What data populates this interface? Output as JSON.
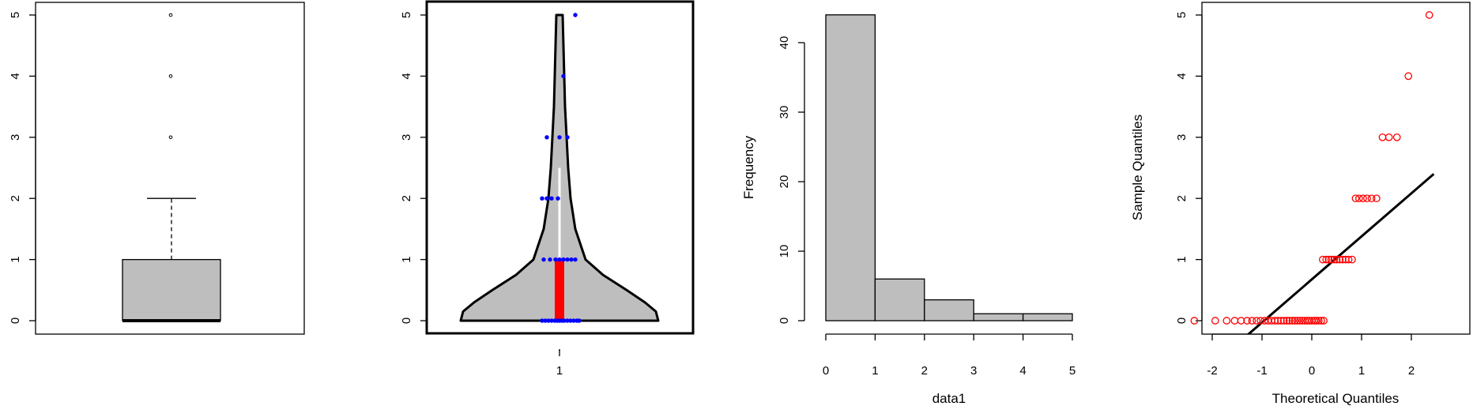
{
  "chart_data": [
    {
      "type": "box",
      "y_ticks": [
        "0",
        "1",
        "2",
        "3",
        "4",
        "5"
      ],
      "ylim": [
        0,
        5
      ],
      "stats": {
        "min": 0,
        "q1": 0,
        "median": 0,
        "q3": 1,
        "whisker_high": 2
      },
      "outliers": [
        3,
        4,
        5
      ],
      "fill": "#bebebe"
    },
    {
      "type": "violin",
      "x_ticks": [
        "1"
      ],
      "y_ticks": [
        "0",
        "1",
        "2",
        "3",
        "4",
        "5"
      ],
      "ylim": [
        0,
        5
      ],
      "iqr": [
        0,
        1
      ],
      "whisker": [
        0,
        2.5
      ],
      "point_color": "#0000ff",
      "iqr_color": "#ff0000",
      "fill": "#bebebe",
      "points": [
        {
          "x": -0.22,
          "y": 0
        },
        {
          "x": -0.18,
          "y": 0
        },
        {
          "x": -0.14,
          "y": 0
        },
        {
          "x": -0.1,
          "y": 0
        },
        {
          "x": -0.06,
          "y": 0
        },
        {
          "x": -0.03,
          "y": 0
        },
        {
          "x": 0.0,
          "y": 0
        },
        {
          "x": 0.03,
          "y": 0
        },
        {
          "x": 0.06,
          "y": 0
        },
        {
          "x": 0.1,
          "y": 0
        },
        {
          "x": 0.14,
          "y": 0
        },
        {
          "x": 0.18,
          "y": 0
        },
        {
          "x": 0.22,
          "y": 0
        },
        {
          "x": 0.25,
          "y": 0
        },
        {
          "x": -0.2,
          "y": 1
        },
        {
          "x": -0.12,
          "y": 1
        },
        {
          "x": -0.05,
          "y": 1
        },
        {
          "x": 0.0,
          "y": 1
        },
        {
          "x": 0.05,
          "y": 1
        },
        {
          "x": 0.1,
          "y": 1
        },
        {
          "x": 0.15,
          "y": 1
        },
        {
          "x": 0.2,
          "y": 1
        },
        {
          "x": -0.22,
          "y": 2
        },
        {
          "x": -0.16,
          "y": 2
        },
        {
          "x": -0.1,
          "y": 2
        },
        {
          "x": -0.02,
          "y": 2
        },
        {
          "x": -0.16,
          "y": 3
        },
        {
          "x": 0.0,
          "y": 3
        },
        {
          "x": 0.1,
          "y": 3
        },
        {
          "x": 0.05,
          "y": 4
        },
        {
          "x": 0.2,
          "y": 5
        }
      ]
    },
    {
      "type": "histogram",
      "x_ticks": [
        "0",
        "1",
        "2",
        "3",
        "4",
        "5"
      ],
      "y_ticks": [
        "0",
        "10",
        "20",
        "30",
        "40"
      ],
      "xlim": [
        0,
        5
      ],
      "ylim": [
        0,
        44
      ],
      "bins": [
        [
          0,
          1
        ],
        [
          1,
          2
        ],
        [
          2,
          3
        ],
        [
          3,
          4
        ],
        [
          4,
          5
        ]
      ],
      "counts": [
        44,
        6,
        3,
        1,
        1
      ],
      "xlabel": "data1",
      "ylabel": "Frequency",
      "fill": "#bebebe"
    },
    {
      "type": "scatter",
      "x_ticks": [
        "-2",
        "-1",
        "0",
        "1",
        "2"
      ],
      "y_ticks": [
        "0",
        "1",
        "2",
        "3",
        "4",
        "5"
      ],
      "xlim": [
        -2.45,
        2.45
      ],
      "ylim": [
        0,
        5
      ],
      "xlabel": "Theoretical Quantiles",
      "ylabel": "Sample Quantiles",
      "point_color": "#ff0000",
      "line_color": "#000000",
      "points": [
        {
          "x": -2.36,
          "y": 0
        },
        {
          "x": -1.94,
          "y": 0
        },
        {
          "x": -1.71,
          "y": 0
        },
        {
          "x": -1.55,
          "y": 0
        },
        {
          "x": -1.42,
          "y": 0
        },
        {
          "x": -1.3,
          "y": 0
        },
        {
          "x": -1.2,
          "y": 0
        },
        {
          "x": -1.11,
          "y": 0
        },
        {
          "x": -1.03,
          "y": 0
        },
        {
          "x": -0.95,
          "y": 0
        },
        {
          "x": -0.88,
          "y": 0
        },
        {
          "x": -0.81,
          "y": 0
        },
        {
          "x": -0.74,
          "y": 0
        },
        {
          "x": -0.68,
          "y": 0
        },
        {
          "x": -0.62,
          "y": 0
        },
        {
          "x": -0.56,
          "y": 0
        },
        {
          "x": -0.5,
          "y": 0
        },
        {
          "x": -0.45,
          "y": 0
        },
        {
          "x": -0.39,
          "y": 0
        },
        {
          "x": -0.34,
          "y": 0
        },
        {
          "x": -0.29,
          "y": 0
        },
        {
          "x": -0.24,
          "y": 0
        },
        {
          "x": -0.19,
          "y": 0
        },
        {
          "x": -0.14,
          "y": 0
        },
        {
          "x": -0.09,
          "y": 0
        },
        {
          "x": -0.05,
          "y": 0
        },
        {
          "x": 0.0,
          "y": 0
        },
        {
          "x": 0.05,
          "y": 0
        },
        {
          "x": 0.09,
          "y": 0
        },
        {
          "x": 0.14,
          "y": 0
        },
        {
          "x": 0.19,
          "y": 0
        },
        {
          "x": 0.24,
          "y": 0
        },
        {
          "x": 0.22,
          "y": 1
        },
        {
          "x": 0.29,
          "y": 1
        },
        {
          "x": 0.34,
          "y": 1
        },
        {
          "x": 0.39,
          "y": 1
        },
        {
          "x": 0.45,
          "y": 1
        },
        {
          "x": 0.5,
          "y": 1
        },
        {
          "x": 0.56,
          "y": 1
        },
        {
          "x": 0.62,
          "y": 1
        },
        {
          "x": 0.68,
          "y": 1
        },
        {
          "x": 0.74,
          "y": 1
        },
        {
          "x": 0.81,
          "y": 1
        },
        {
          "x": 0.88,
          "y": 2
        },
        {
          "x": 0.95,
          "y": 2
        },
        {
          "x": 1.03,
          "y": 2
        },
        {
          "x": 1.11,
          "y": 2
        },
        {
          "x": 1.2,
          "y": 2
        },
        {
          "x": 1.3,
          "y": 2
        },
        {
          "x": 1.42,
          "y": 3
        },
        {
          "x": 1.55,
          "y": 3
        },
        {
          "x": 1.71,
          "y": 3
        },
        {
          "x": 1.94,
          "y": 4
        },
        {
          "x": 2.36,
          "y": 5
        }
      ],
      "qq_line": {
        "x1": -2.45,
        "y1": -1.05,
        "x2": 2.45,
        "y2": 2.4
      }
    }
  ]
}
